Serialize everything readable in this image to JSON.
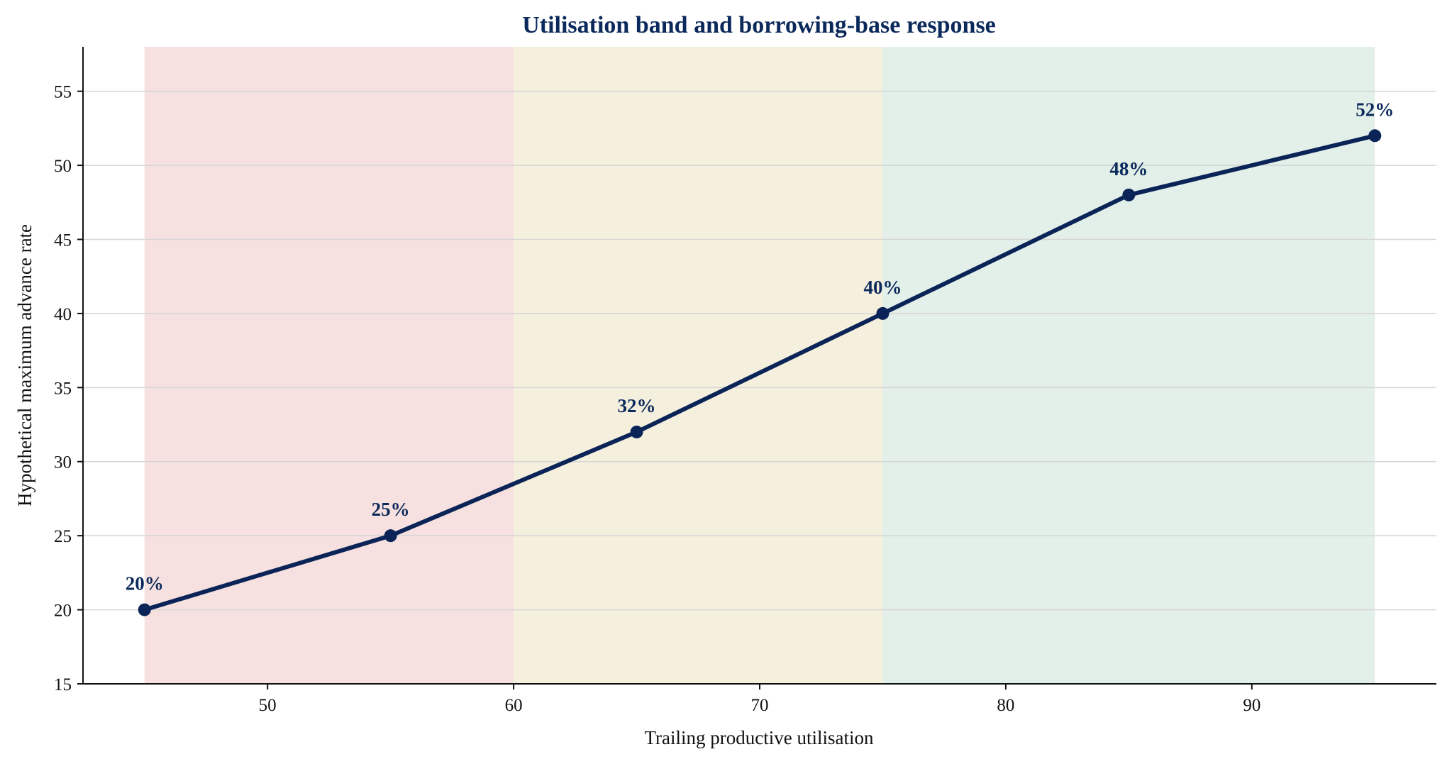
{
  "chart_data": {
    "type": "line",
    "title": "Utilisation band and borrowing-base response",
    "xlabel": "Trailing productive utilisation",
    "ylabel": "Hypothetical maximum advance rate",
    "xlim": [
      42.5,
      97.5
    ],
    "ylim": [
      15,
      58
    ],
    "x_ticks": [
      50,
      60,
      70,
      80,
      90
    ],
    "y_ticks": [
      15,
      20,
      25,
      30,
      35,
      40,
      45,
      50,
      55
    ],
    "grid": "horizontal",
    "legend": "none",
    "bands": [
      {
        "x0": 45,
        "x1": 60,
        "color": "#f6e1e0"
      },
      {
        "x0": 60,
        "x1": 75,
        "color": "#f5efde"
      },
      {
        "x0": 75,
        "x1": 95,
        "color": "#e3efe9"
      }
    ],
    "series": [
      {
        "x": [
          45,
          55,
          65,
          75,
          85,
          95
        ],
        "y": [
          20,
          25,
          32,
          40,
          48,
          52
        ],
        "labels": [
          "20%",
          "25%",
          "32%",
          "40%",
          "48%",
          "52%"
        ],
        "color": "#0b2457"
      }
    ]
  }
}
